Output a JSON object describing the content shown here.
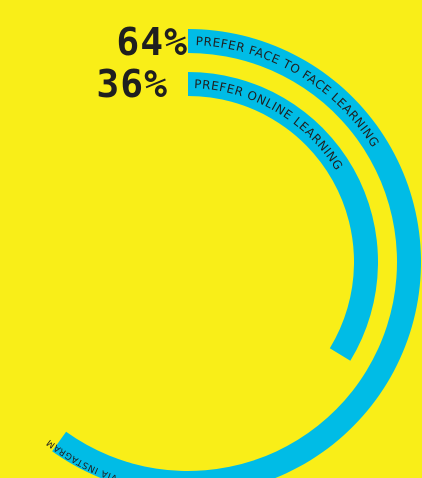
{
  "chart_data": {
    "type": "radial-bar",
    "series": [
      {
        "value": 64,
        "percent_label": "64%",
        "label": "PREFER FACE TO FACE LEARNING",
        "color": "#00BCE6"
      },
      {
        "value": 36,
        "percent_label": "36%",
        "label": "PREFER ONLINE LEARNING",
        "color": "#00BCE6"
      }
    ],
    "max": 100,
    "footnote": "POLL CONDUCTED VIA INSTAGRAM"
  }
}
